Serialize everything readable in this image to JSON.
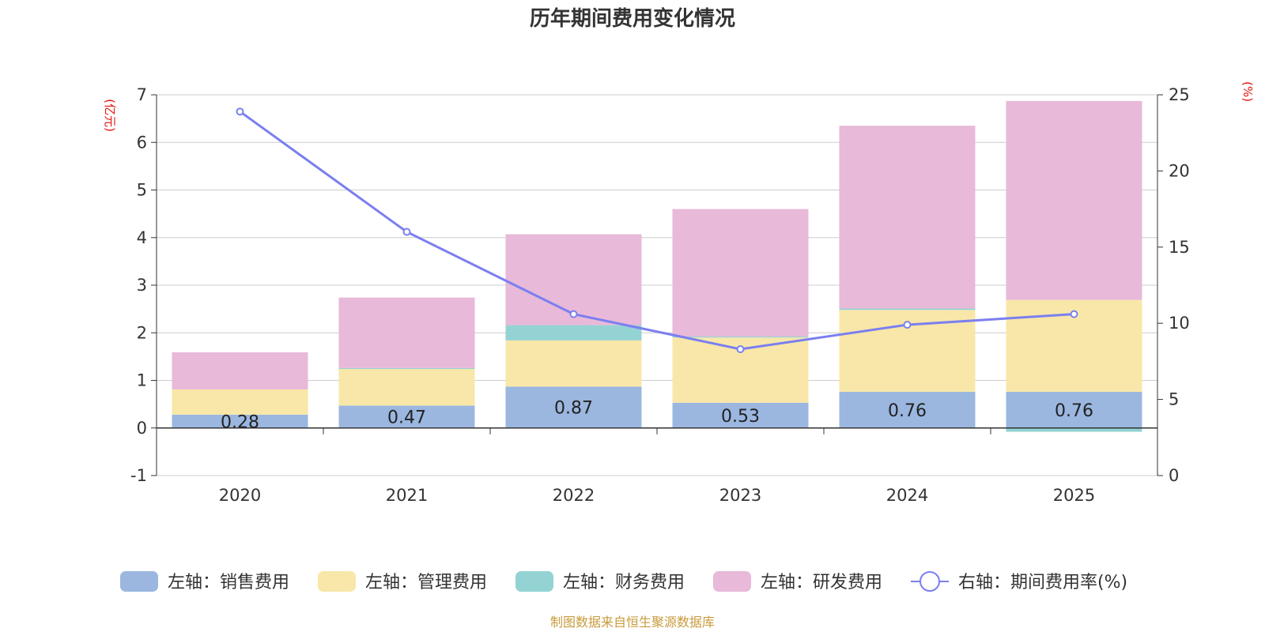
{
  "chart_data": {
    "type": "bar",
    "title": "历年期间费用变化情况",
    "categories": [
      "2020",
      "2021",
      "2022",
      "2023",
      "2024",
      "2025"
    ],
    "series": [
      {
        "name": "左轴：销售费用",
        "axis": "left",
        "color": "#9bb7e0",
        "values": [
          0.28,
          0.47,
          0.87,
          0.53,
          0.76,
          0.76
        ],
        "show_labels": true
      },
      {
        "name": "左轴：管理费用",
        "axis": "left",
        "color": "#f8e7a8",
        "values": [
          0.53,
          0.77,
          0.97,
          1.37,
          1.72,
          1.93
        ]
      },
      {
        "name": "左轴：财务费用",
        "axis": "left",
        "color": "#94d3d3",
        "values": [
          0.0,
          0.02,
          0.32,
          0.02,
          0.03,
          -0.08
        ]
      },
      {
        "name": "左轴：研发费用",
        "axis": "left",
        "color": "#e8b9d9",
        "values": [
          0.78,
          1.48,
          1.91,
          2.68,
          3.84,
          4.18
        ]
      },
      {
        "name": "右轴：期间费用率(%)",
        "axis": "right",
        "type": "line",
        "color": "#7b7ff0",
        "values": [
          23.9,
          16.0,
          10.6,
          8.3,
          9.9,
          10.6
        ]
      }
    ],
    "y_left": {
      "unit": "(亿元)",
      "ylim": [
        -1,
        7
      ],
      "ticks": [
        "-1",
        "0",
        "1",
        "2",
        "3",
        "4",
        "5",
        "6",
        "7"
      ]
    },
    "y_right": {
      "unit": "(%)",
      "ylim": [
        0,
        25
      ],
      "ticks": [
        "0",
        "5",
        "10",
        "15",
        "20",
        "25"
      ]
    },
    "legend_position": "bottom"
  },
  "source_text": "制图数据来自恒生聚源数据库"
}
